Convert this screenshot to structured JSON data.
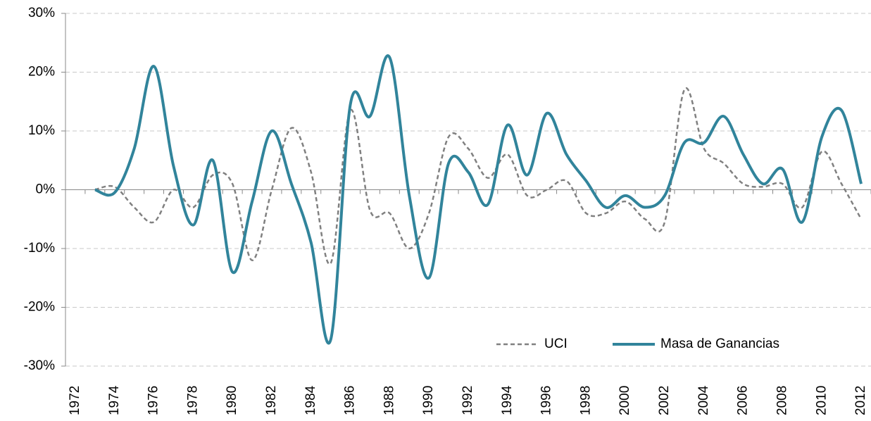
{
  "chart_data": {
    "type": "line",
    "categories": [
      "1972",
      null,
      "1974",
      null,
      "1976",
      null,
      "1978",
      null,
      "1980",
      null,
      "1982",
      null,
      "1984",
      null,
      "1986",
      null,
      "1988",
      null,
      "1990",
      null,
      "1992",
      null,
      "1994",
      null,
      "1996",
      null,
      "1998",
      null,
      "2000",
      null,
      "2002",
      null,
      "2004",
      null,
      "2006",
      null,
      "2008",
      null,
      "2010",
      null,
      "2012"
    ],
    "series": [
      {
        "name": "UCI",
        "color": "#808080",
        "dashed": true,
        "values": [
          null,
          0,
          0.5,
          -3,
          -5.5,
          0,
          -3,
          2.5,
          1,
          -12,
          0,
          10.5,
          3,
          -12.5,
          13.5,
          -3.5,
          -4,
          -10,
          -4,
          9,
          7,
          2,
          6,
          -1,
          0,
          1.5,
          -4,
          -4,
          -2,
          -5,
          -5.5,
          17,
          7,
          4.5,
          1,
          0.5,
          1,
          -3,
          6.5,
          1,
          -5
        ]
      },
      {
        "name": "Masa de Ganancias",
        "color": "#31849b",
        "dashed": false,
        "values": [
          null,
          0,
          -0.5,
          7,
          21,
          4,
          -6,
          5,
          -14,
          -2,
          10,
          1,
          -9,
          -25.5,
          14.5,
          12.5,
          22.5,
          -1,
          -15,
          4.5,
          3,
          -2.5,
          11,
          2.5,
          13,
          6,
          1.5,
          -3,
          -1,
          -3,
          -1,
          8,
          8,
          12.5,
          6,
          1,
          3.5,
          -5.5,
          9,
          13.5,
          1
        ]
      }
    ],
    "ylim": [
      -30,
      30
    ],
    "yticks": [
      {
        "value": -30,
        "label": "-30%"
      },
      {
        "value": -20,
        "label": "-20%"
      },
      {
        "value": -10,
        "label": "-10%"
      },
      {
        "value": 0,
        "label": "0%"
      },
      {
        "value": 10,
        "label": "10%"
      },
      {
        "value": 20,
        "label": "20%"
      },
      {
        "value": 30,
        "label": "30%"
      }
    ],
    "grid": true,
    "legend": "lower right"
  }
}
